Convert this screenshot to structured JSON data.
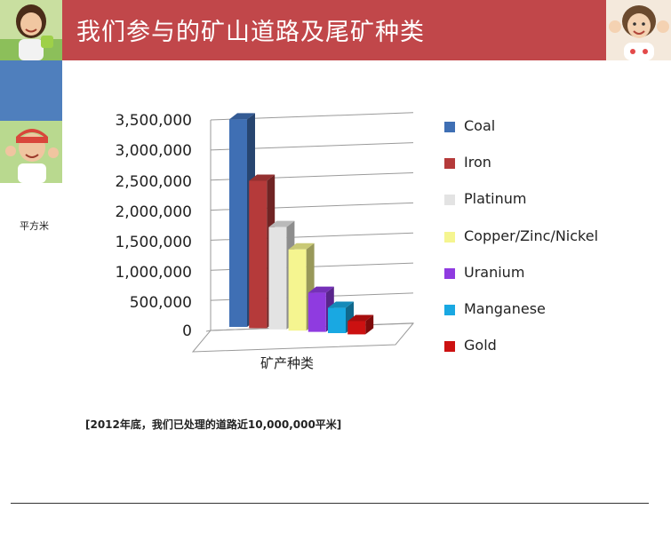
{
  "header": {
    "title": "我们参与的矿山道路及尾矿种类"
  },
  "photos": [
    "girl-photo-top-left",
    "child-photo-top-right",
    "boy-photo-left"
  ],
  "chart_data": {
    "type": "bar",
    "style": "3d-column",
    "categories": [
      "Coal",
      "Iron",
      "Platinum",
      "Copper/Zinc/Nickel",
      "Uranium",
      "Manganese",
      "Gold"
    ],
    "values": [
      3450000,
      2450000,
      1700000,
      1350000,
      650000,
      420000,
      220000
    ],
    "colors": [
      "#3f6fb4",
      "#b53a3a",
      "#e3e3e3",
      "#f5f590",
      "#8f3be0",
      "#19a8e2",
      "#cc1111"
    ],
    "ylabel": "平方米",
    "xlabel": "矿产种类",
    "yticks": [
      "3,500,000",
      "3,000,000",
      "2,500,000",
      "2,000,000",
      "1,500,000",
      "1,000,000",
      "500,000",
      "0"
    ],
    "ylim": [
      0,
      3500000
    ],
    "legend_position": "right",
    "legend": [
      "Coal",
      "Iron",
      "Platinum",
      "Copper/Zinc/Nickel",
      "Uranium",
      "Manganese",
      "Gold"
    ]
  },
  "note": "[2012年底，我们已处理的道路近10,000,000平米]"
}
